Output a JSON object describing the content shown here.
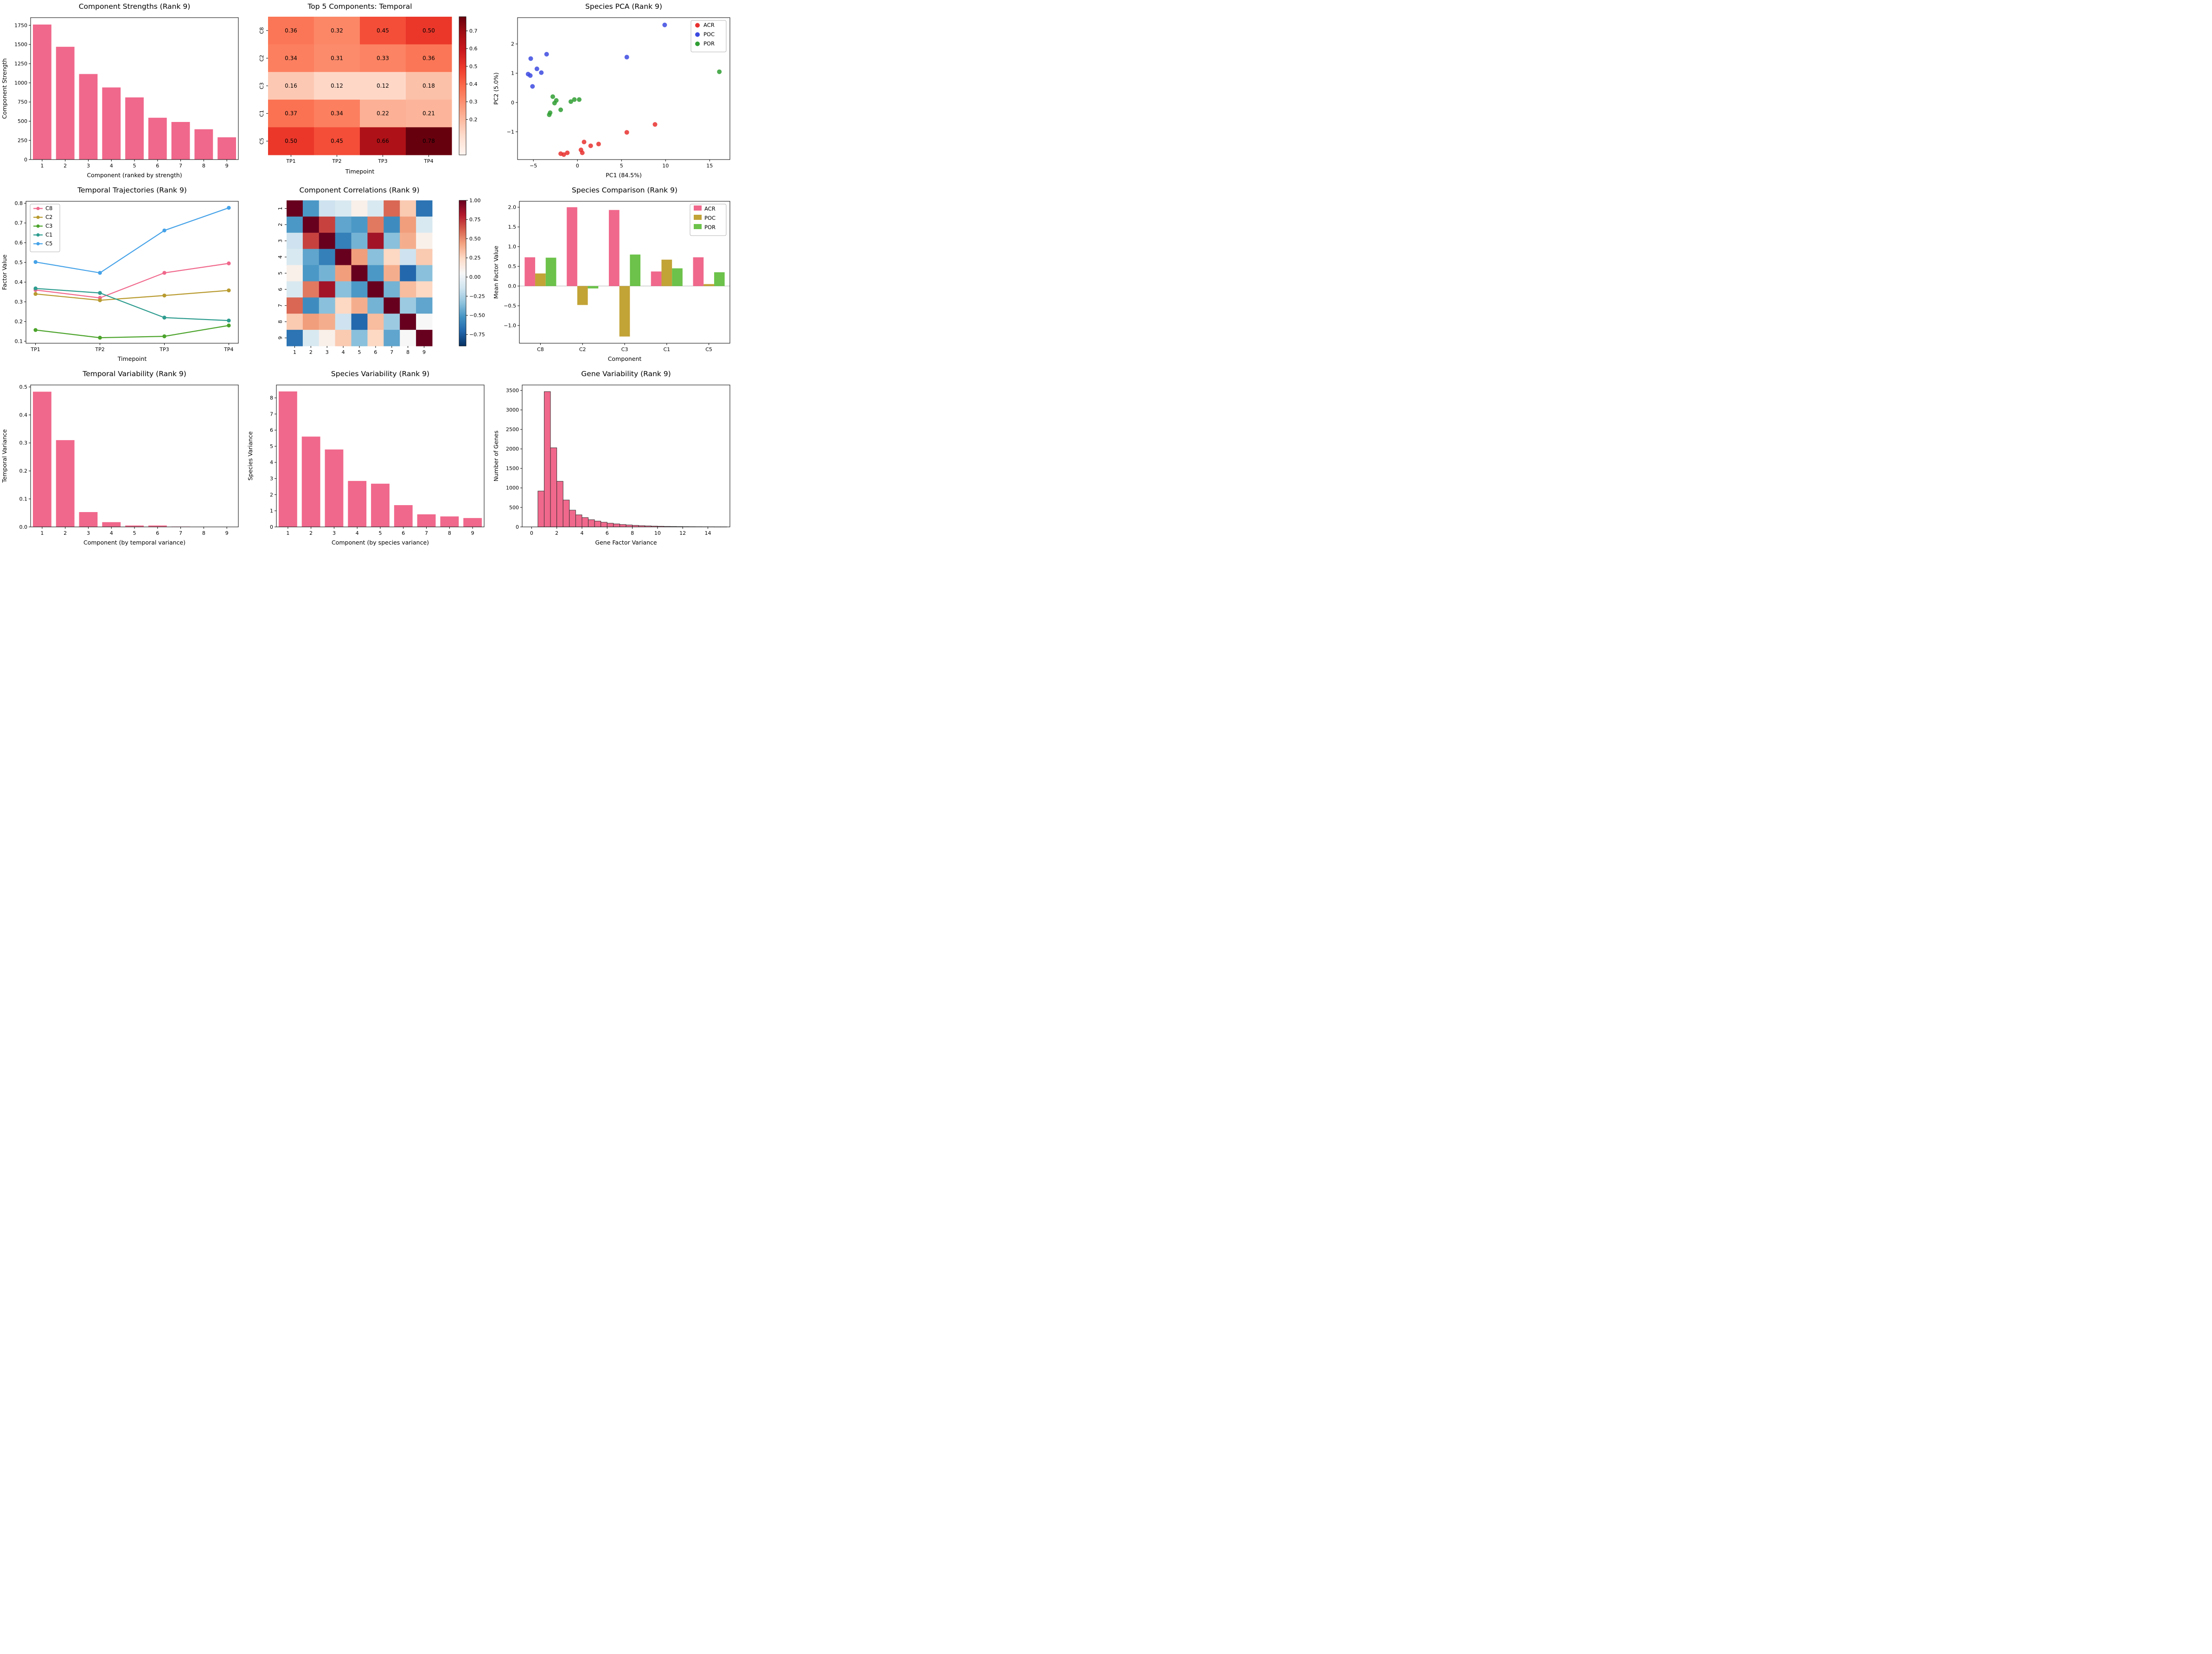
{
  "figure": {
    "background": "#ffffff"
  },
  "chart_data": [
    {
      "type": "bar",
      "title": "Component Strengths (Rank 9)",
      "xlabel": "Component (ranked by strength)",
      "ylabel": "Component Strength",
      "categories": [
        "1",
        "2",
        "3",
        "4",
        "5",
        "6",
        "7",
        "8",
        "9"
      ],
      "values": [
        1760,
        1470,
        1115,
        940,
        810,
        545,
        490,
        395,
        290
      ],
      "ylim": [
        0,
        1850
      ],
      "yticks": [
        0,
        250,
        500,
        750,
        1000,
        1250,
        1500,
        1750
      ],
      "ytick_labels": [
        "0",
        "250",
        "500",
        "750",
        "1000",
        "1250",
        "1500",
        "1750"
      ],
      "bar_color": "#f0688c"
    },
    {
      "type": "heatmap",
      "title": "Top 5 Components: Temporal",
      "xlabel": "Timepoint",
      "rows": [
        "C8",
        "C2",
        "C3",
        "C1",
        "C5"
      ],
      "cols": [
        "TP1",
        "TP2",
        "TP3",
        "TP4"
      ],
      "values": [
        [
          0.36,
          0.32,
          0.45,
          0.5
        ],
        [
          0.34,
          0.31,
          0.33,
          0.36
        ],
        [
          0.16,
          0.12,
          0.12,
          0.18
        ],
        [
          0.37,
          0.34,
          0.22,
          0.21
        ],
        [
          0.5,
          0.45,
          0.66,
          0.78
        ]
      ],
      "vmin": 0.0,
      "vmax": 0.78,
      "colormap": "reds",
      "colorbar_ticks": [
        0.2,
        0.3,
        0.4,
        0.5,
        0.6,
        0.7
      ],
      "colorbar_tick_labels": [
        "0.2",
        "0.3",
        "0.4",
        "0.5",
        "0.6",
        "0.7"
      ]
    },
    {
      "type": "scatter",
      "title": "Species PCA (Rank 9)",
      "xlabel": "PC1 (84.5%)",
      "ylabel": "PC2 (5.0%)",
      "xlim": [
        -6.8,
        17.3
      ],
      "ylim": [
        -1.95,
        2.9
      ],
      "xticks": [
        -5,
        0,
        5,
        10,
        15
      ],
      "xtick_labels": [
        "−5",
        "0",
        "5",
        "10",
        "15"
      ],
      "yticks": [
        -1,
        0,
        1,
        2
      ],
      "ytick_labels": [
        "−1",
        "0",
        "1",
        "2"
      ],
      "legend_position": "top-right",
      "series": [
        {
          "name": "ACR",
          "color": "#e8312f",
          "points": [
            [
              -1.9,
              -1.75
            ],
            [
              -1.55,
              -1.78
            ],
            [
              -1.15,
              -1.72
            ],
            [
              0.4,
              -1.62
            ],
            [
              0.55,
              -1.72
            ],
            [
              0.75,
              -1.35
            ],
            [
              1.5,
              -1.48
            ],
            [
              2.4,
              -1.42
            ],
            [
              5.6,
              -1.02
            ],
            [
              8.8,
              -0.75
            ]
          ]
        },
        {
          "name": "POC",
          "color": "#3c4ae0",
          "points": [
            [
              -5.3,
              1.5
            ],
            [
              -5.6,
              0.97
            ],
            [
              -5.35,
              0.92
            ],
            [
              -4.6,
              1.15
            ],
            [
              -4.1,
              1.02
            ],
            [
              -3.5,
              1.65
            ],
            [
              -5.1,
              0.55
            ],
            [
              5.6,
              1.55
            ],
            [
              9.9,
              2.65
            ]
          ]
        },
        {
          "name": "POR",
          "color": "#2f9e33",
          "points": [
            [
              -2.8,
              0.2
            ],
            [
              -2.4,
              0.07
            ],
            [
              -2.6,
              -0.02
            ],
            [
              -3.1,
              -0.35
            ],
            [
              -3.2,
              -0.42
            ],
            [
              -1.9,
              -0.25
            ],
            [
              -0.75,
              0.03
            ],
            [
              -0.35,
              0.1
            ],
            [
              0.2,
              0.1
            ],
            [
              16.1,
              1.05
            ]
          ]
        }
      ]
    },
    {
      "type": "line",
      "title": "Temporal Trajectories (Rank 9)",
      "xlabel": "Timepoint",
      "ylabel": "Factor Value",
      "categories": [
        "TP1",
        "TP2",
        "TP3",
        "TP4"
      ],
      "ylim": [
        0.09,
        0.81
      ],
      "yticks": [
        0.1,
        0.2,
        0.3,
        0.4,
        0.5,
        0.6,
        0.7,
        0.8
      ],
      "ytick_labels": [
        "0.1",
        "0.2",
        "0.3",
        "0.4",
        "0.5",
        "0.6",
        "0.7",
        "0.8"
      ],
      "legend_position": "top-left",
      "series": [
        {
          "name": "C8",
          "color": "#f0688c",
          "values": [
            0.36,
            0.32,
            0.447,
            0.495
          ]
        },
        {
          "name": "C2",
          "color": "#b89a2f",
          "values": [
            0.34,
            0.308,
            0.332,
            0.358
          ]
        },
        {
          "name": "C3",
          "color": "#4ba32b",
          "values": [
            0.157,
            0.118,
            0.125,
            0.18
          ]
        },
        {
          "name": "C1",
          "color": "#2e9c8f",
          "values": [
            0.368,
            0.345,
            0.22,
            0.205
          ]
        },
        {
          "name": "C5",
          "color": "#45a2e8",
          "values": [
            0.502,
            0.447,
            0.662,
            0.777
          ]
        }
      ]
    },
    {
      "type": "matrix",
      "title": "Component Correlations (Rank 9)",
      "labels": [
        "1",
        "2",
        "3",
        "4",
        "5",
        "6",
        "7",
        "8",
        "9"
      ],
      "vmin": -0.9,
      "vmax": 1.0,
      "colormap": "rdbu_r",
      "colorbar_ticks": [
        1.0,
        0.75,
        0.5,
        0.25,
        0.0,
        -0.25,
        -0.5,
        -0.75
      ],
      "colorbar_tick_labels": [
        "1.00",
        "0.75",
        "0.50",
        "0.25",
        "0.00",
        "−0.25",
        "−0.50",
        "−0.75"
      ],
      "values": [
        [
          1.0,
          -0.5,
          -0.15,
          -0.1,
          0.1,
          -0.1,
          0.6,
          0.3,
          -0.65
        ],
        [
          -0.5,
          1.0,
          0.7,
          -0.45,
          -0.5,
          0.55,
          -0.55,
          0.45,
          -0.1
        ],
        [
          -0.15,
          0.7,
          1.0,
          -0.6,
          -0.4,
          0.85,
          -0.35,
          0.4,
          0.1
        ],
        [
          -0.1,
          -0.45,
          -0.6,
          1.0,
          0.45,
          -0.35,
          0.25,
          -0.15,
          0.3
        ],
        [
          0.1,
          -0.5,
          -0.4,
          0.45,
          1.0,
          -0.5,
          0.4,
          -0.7,
          -0.35
        ],
        [
          -0.1,
          0.55,
          0.85,
          -0.35,
          -0.5,
          1.0,
          -0.4,
          0.35,
          0.25
        ],
        [
          0.6,
          -0.55,
          -0.35,
          0.25,
          0.4,
          -0.4,
          1.0,
          -0.3,
          -0.45
        ],
        [
          0.3,
          0.45,
          0.4,
          -0.15,
          -0.7,
          0.35,
          -0.3,
          1.0,
          0.05
        ],
        [
          -0.65,
          -0.1,
          0.1,
          0.3,
          -0.35,
          0.25,
          -0.45,
          0.05,
          1.0
        ]
      ]
    },
    {
      "type": "grouped_bar",
      "title": "Species Comparison (Rank 9)",
      "xlabel": "Component",
      "ylabel": "Mean Factor Value",
      "categories": [
        "C8",
        "C2",
        "C3",
        "C1",
        "C5"
      ],
      "ylim": [
        -1.45,
        2.15
      ],
      "yticks": [
        -1.0,
        -0.5,
        0.0,
        0.5,
        1.0,
        1.5,
        2.0
      ],
      "ytick_labels": [
        "−1.0",
        "−0.5",
        "0.0",
        "0.5",
        "1.0",
        "1.5",
        "2.0"
      ],
      "legend_position": "top-right",
      "series": [
        {
          "name": "ACR",
          "color": "#f0688c",
          "values": [
            0.73,
            2.0,
            1.93,
            0.37,
            0.73
          ]
        },
        {
          "name": "POC",
          "color": "#c2a336",
          "values": [
            0.32,
            -0.48,
            -1.28,
            0.67,
            0.05
          ]
        },
        {
          "name": "POR",
          "color": "#6cc24a",
          "values": [
            0.72,
            -0.06,
            0.8,
            0.45,
            0.35
          ]
        }
      ]
    },
    {
      "type": "bar",
      "title": "Temporal Variability (Rank 9)",
      "xlabel": "Component (by temporal variance)",
      "ylabel": "Temporal Variance",
      "categories": [
        "1",
        "2",
        "3",
        "4",
        "5",
        "6",
        "7",
        "8",
        "9"
      ],
      "values": [
        0.483,
        0.31,
        0.053,
        0.017,
        0.005,
        0.005,
        0.0012,
        0.0008,
        0.0005
      ],
      "ylim": [
        0,
        0.507
      ],
      "yticks": [
        0.0,
        0.1,
        0.2,
        0.3,
        0.4,
        0.5
      ],
      "ytick_labels": [
        "0.0",
        "0.1",
        "0.2",
        "0.3",
        "0.4",
        "0.5"
      ],
      "bar_color": "#f0688c"
    },
    {
      "type": "bar",
      "title": "Species Variability (Rank 9)",
      "xlabel": "Component (by species variance)",
      "ylabel": "Species Variance",
      "categories": [
        "1",
        "2",
        "3",
        "4",
        "5",
        "6",
        "7",
        "8",
        "9"
      ],
      "values": [
        8.4,
        5.6,
        4.8,
        2.85,
        2.68,
        1.35,
        0.78,
        0.65,
        0.55
      ],
      "ylim": [
        0,
        8.8
      ],
      "yticks": [
        0,
        1,
        2,
        3,
        4,
        5,
        6,
        7,
        8
      ],
      "ytick_labels": [
        "0",
        "1",
        "2",
        "3",
        "4",
        "5",
        "6",
        "7",
        "8"
      ],
      "bar_color": "#f0688c"
    },
    {
      "type": "histogram",
      "title": "Gene Variability (Rank 9)",
      "xlabel": "Gene Factor Variance",
      "ylabel": "Number of Genes",
      "bin_start": 0.5,
      "bin_width": 0.5,
      "counts": [
        920,
        3470,
        2030,
        1170,
        690,
        430,
        310,
        240,
        185,
        150,
        120,
        95,
        78,
        62,
        50,
        40,
        32,
        26,
        21,
        17,
        13,
        11,
        9,
        7,
        6,
        5,
        4,
        3,
        2,
        2
      ],
      "xlim": [
        -0.75,
        15.75
      ],
      "xticks": [
        0,
        2,
        4,
        6,
        8,
        10,
        12,
        14
      ],
      "xtick_labels": [
        "0",
        "2",
        "4",
        "6",
        "8",
        "10",
        "12",
        "14"
      ],
      "ylim": [
        0,
        3640
      ],
      "yticks": [
        0,
        500,
        1000,
        1500,
        2000,
        2500,
        3000,
        3500
      ],
      "ytick_labels": [
        "0",
        "500",
        "1000",
        "1500",
        "2000",
        "2500",
        "3000",
        "3500"
      ],
      "bar_color": "#f0688c",
      "edge_color": "#2b2b2b"
    }
  ]
}
